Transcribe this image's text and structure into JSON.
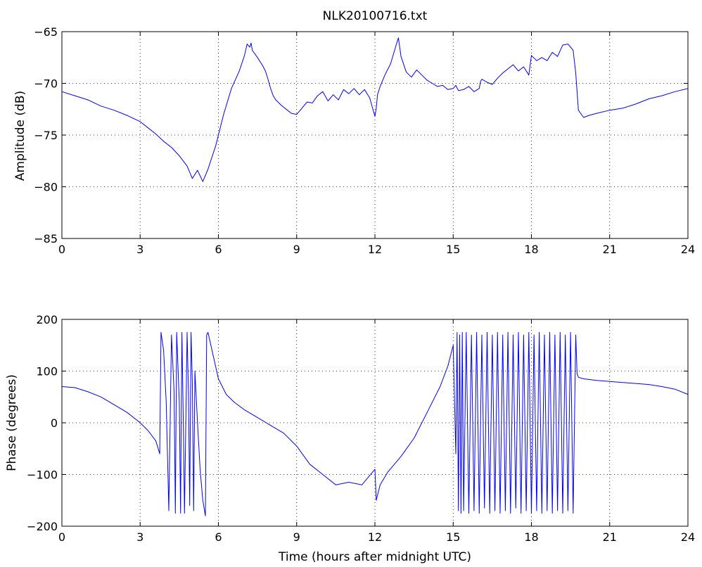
{
  "title": "NLK20100716.txt",
  "chart_data": [
    {
      "type": "line",
      "ylabel": "Amplitude (dB)",
      "xlabel": "",
      "xlim": [
        0,
        24
      ],
      "ylim": [
        -85,
        -65
      ],
      "xticks": [
        0,
        3,
        6,
        9,
        12,
        15,
        18,
        21,
        24
      ],
      "yticks": [
        -85,
        -80,
        -75,
        -70,
        -65
      ],
      "grid": true,
      "series": [
        {
          "color": "#0000ff",
          "x": [
            0,
            0.5,
            1,
            1.5,
            2,
            2.5,
            3,
            3.3,
            3.6,
            3.9,
            4.2,
            4.5,
            4.8,
            5.0,
            5.2,
            5.4,
            5.6,
            5.9,
            6.2,
            6.5,
            6.8,
            7.0,
            7.1,
            7.2,
            7.25,
            7.3,
            7.5,
            7.7,
            7.8,
            7.9,
            8.0,
            8.1,
            8.2,
            8.4,
            8.6,
            8.8,
            9.0,
            9.2,
            9.4,
            9.6,
            9.8,
            10.0,
            10.2,
            10.4,
            10.6,
            10.8,
            11.0,
            11.2,
            11.4,
            11.6,
            11.8,
            12.0,
            12.05,
            12.1,
            12.2,
            12.4,
            12.6,
            12.8,
            12.9,
            13.0,
            13.2,
            13.4,
            13.6,
            13.8,
            14.0,
            14.2,
            14.4,
            14.6,
            14.8,
            15.0,
            15.1,
            15.2,
            15.4,
            15.6,
            15.8,
            16.0,
            16.05,
            16.1,
            16.3,
            16.5,
            16.7,
            16.9,
            17.1,
            17.3,
            17.5,
            17.7,
            17.9,
            18.0,
            18.2,
            18.4,
            18.6,
            18.8,
            19.0,
            19.2,
            19.4,
            19.6,
            19.7,
            19.8,
            20.0,
            20.2,
            20.5,
            21.0,
            21.5,
            22.0,
            22.5,
            23.0,
            23.5,
            24.0
          ],
          "values": [
            -70.8,
            -71.2,
            -71.6,
            -72.2,
            -72.6,
            -73.1,
            -73.7,
            -74.3,
            -74.9,
            -75.6,
            -76.2,
            -77.0,
            -78.0,
            -79.2,
            -78.4,
            -79.5,
            -78.3,
            -76.0,
            -73.0,
            -70.5,
            -68.8,
            -67.3,
            -66.2,
            -66.5,
            -66.1,
            -66.8,
            -67.5,
            -68.3,
            -68.8,
            -69.6,
            -70.5,
            -71.2,
            -71.6,
            -72.1,
            -72.5,
            -72.9,
            -73.0,
            -72.4,
            -71.8,
            -71.9,
            -71.2,
            -70.8,
            -71.7,
            -71.1,
            -71.6,
            -70.6,
            -71.0,
            -70.5,
            -71.1,
            -70.6,
            -71.4,
            -73.2,
            -72.4,
            -71.1,
            -70.3,
            -69.1,
            -68.1,
            -66.4,
            -65.6,
            -67.4,
            -68.9,
            -69.4,
            -68.7,
            -69.2,
            -69.7,
            -70.0,
            -70.3,
            -70.2,
            -70.6,
            -70.5,
            -70.2,
            -70.7,
            -70.6,
            -70.3,
            -70.8,
            -70.5,
            -69.8,
            -69.6,
            -69.9,
            -70.1,
            -69.5,
            -69.0,
            -68.6,
            -68.2,
            -68.8,
            -68.4,
            -69.2,
            -67.3,
            -67.8,
            -67.5,
            -67.8,
            -67.0,
            -67.4,
            -66.3,
            -66.2,
            -66.8,
            -69.0,
            -72.6,
            -73.3,
            -73.1,
            -72.9,
            -72.6,
            -72.4,
            -72.0,
            -71.5,
            -71.2,
            -70.8,
            -70.5
          ]
        }
      ]
    },
    {
      "type": "line",
      "ylabel": "Phase (degrees)",
      "xlabel": "Time (hours after midnight UTC)",
      "xlim": [
        0,
        24
      ],
      "ylim": [
        -200,
        200
      ],
      "xticks": [
        0,
        3,
        6,
        9,
        12,
        15,
        18,
        21,
        24
      ],
      "yticks": [
        -200,
        -100,
        0,
        100,
        200
      ],
      "grid": true,
      "series": [
        {
          "color": "#0000ff",
          "x": [
            0,
            0.5,
            1,
            1.5,
            2,
            2.5,
            3,
            3.3,
            3.6,
            3.75,
            3.8,
            3.9,
            4.0,
            4.1,
            4.2,
            4.3,
            4.35,
            4.4,
            4.5,
            4.55,
            4.6,
            4.65,
            4.7,
            4.8,
            4.85,
            4.9,
            4.95,
            5.0,
            5.05,
            5.1,
            5.2,
            5.3,
            5.4,
            5.5,
            5.55,
            5.6,
            5.8,
            6.0,
            6.3,
            6.6,
            7.0,
            7.5,
            8.0,
            8.5,
            9.0,
            9.5,
            10.0,
            10.5,
            11.0,
            11.5,
            12.0,
            12.05,
            12.1,
            12.2,
            12.5,
            13.0,
            13.5,
            14.0,
            14.5,
            14.8,
            15.0,
            15.1,
            15.15,
            15.2,
            15.25,
            15.3,
            15.35,
            15.4,
            15.5,
            15.6,
            15.7,
            15.8,
            15.9,
            16.0,
            16.1,
            16.2,
            16.3,
            16.4,
            16.5,
            16.6,
            16.7,
            16.8,
            16.9,
            17.0,
            17.1,
            17.2,
            17.3,
            17.4,
            17.5,
            17.6,
            17.7,
            17.8,
            17.9,
            18.0,
            18.1,
            18.2,
            18.3,
            18.4,
            18.5,
            18.6,
            18.7,
            18.8,
            18.9,
            19.0,
            19.1,
            19.2,
            19.3,
            19.4,
            19.5,
            19.6,
            19.7,
            19.75,
            19.8,
            20.0,
            20.5,
            21.0,
            21.5,
            22.0,
            22.5,
            23.0,
            23.5,
            24.0
          ],
          "values": [
            70,
            68,
            60,
            50,
            35,
            20,
            0,
            -15,
            -35,
            -60,
            175,
            140,
            40,
            -170,
            170,
            60,
            -175,
            175,
            40,
            -175,
            175,
            20,
            -175,
            175,
            60,
            -160,
            175,
            80,
            -170,
            100,
            0,
            -90,
            -150,
            -180,
            170,
            175,
            130,
            85,
            55,
            40,
            25,
            10,
            -5,
            -20,
            -45,
            -80,
            -100,
            -120,
            -115,
            -120,
            -90,
            -150,
            -140,
            -120,
            -95,
            -65,
            -30,
            20,
            70,
            110,
            150,
            -60,
            175,
            -170,
            170,
            -175,
            175,
            -170,
            175,
            -175,
            170,
            -170,
            175,
            -175,
            170,
            -165,
            175,
            -175,
            170,
            -170,
            175,
            -175,
            170,
            -170,
            175,
            -175,
            170,
            -165,
            175,
            -175,
            170,
            -170,
            175,
            -175,
            170,
            -170,
            175,
            -175,
            170,
            -170,
            175,
            -175,
            170,
            -170,
            175,
            -175,
            170,
            -170,
            175,
            -175,
            170,
            95,
            88,
            85,
            82,
            80,
            78,
            76,
            74,
            70,
            65,
            55
          ]
        }
      ]
    }
  ]
}
